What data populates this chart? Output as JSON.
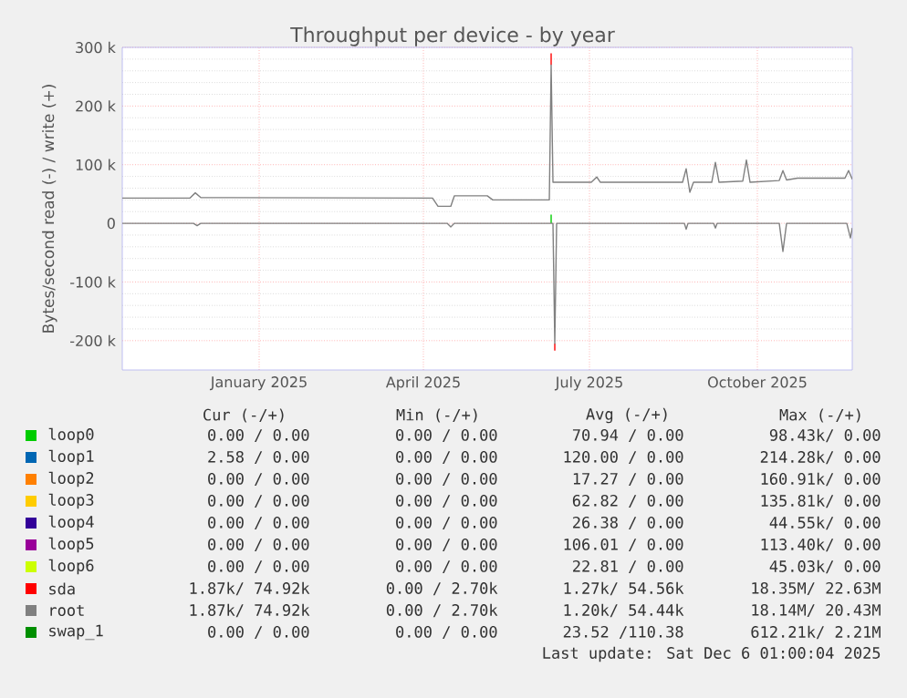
{
  "chart_data": {
    "type": "line",
    "title": "Throughput per device - by year",
    "ylabel": "Bytes/second read (-) / write (+)",
    "xlim": [
      "2024-11-01",
      "2025-12-06"
    ],
    "ylim": [
      -250000,
      300000
    ],
    "xticks": [
      {
        "value": "2025-01-15",
        "label": "January 2025"
      },
      {
        "value": "2025-04-15",
        "label": "April 2025"
      },
      {
        "value": "2025-07-15",
        "label": "July 2025"
      },
      {
        "value": "2025-10-15",
        "label": "October 2025"
      }
    ],
    "yticks": [
      {
        "value": -200000,
        "label": "-200 k"
      },
      {
        "value": -100000,
        "label": "-100 k"
      },
      {
        "value": 0,
        "label": "0"
      },
      {
        "value": 100000,
        "label": "100 k"
      },
      {
        "value": 200000,
        "label": "200 k"
      },
      {
        "value": 300000,
        "label": "300 k"
      }
    ],
    "grid": true,
    "legend": "bottom",
    "line_style": "solid",
    "marker": "none",
    "series": [
      {
        "name": "loop0",
        "color": "#00cc00",
        "x": [
          "2025-06-24",
          "2025-06-24"
        ],
        "values": [
          0,
          15000
        ]
      },
      {
        "name": "loop1",
        "color": "#0066b3"
      },
      {
        "name": "loop2",
        "color": "#ff8000"
      },
      {
        "name": "loop3",
        "color": "#ffcc00"
      },
      {
        "name": "loop4",
        "color": "#330099"
      },
      {
        "name": "loop5",
        "color": "#990099"
      },
      {
        "name": "loop6",
        "color": "#ccff00"
      },
      {
        "name": "sda",
        "color": "#ff0000",
        "x": [
          "2025-06-24",
          "2025-06-24"
        ],
        "values": [
          270000,
          290000
        ]
      },
      {
        "color": "#ff0000",
        "x": [
          "2025-06-26",
          "2025-06-26"
        ],
        "values": [
          -205000,
          -217000
        ]
      },
      {
        "name": "root",
        "color": "#808080",
        "x": [
          "2024-11-01",
          "2024-12-08",
          "2024-12-11",
          "2024-12-14",
          "2025-04-20",
          "2025-04-23",
          "2025-04-30",
          "2025-05-02",
          "2025-05-20",
          "2025-05-23",
          "2025-06-23",
          "2025-06-24",
          "2025-06-25",
          "2025-07-16",
          "2025-07-19",
          "2025-07-21",
          "2025-09-04",
          "2025-09-06",
          "2025-09-08",
          "2025-09-10",
          "2025-09-20",
          "2025-09-22",
          "2025-09-24",
          "2025-10-07",
          "2025-10-09",
          "2025-10-11",
          "2025-10-27",
          "2025-10-29",
          "2025-10-31",
          "2025-11-06",
          "2025-12-02",
          "2025-12-04",
          "2025-12-06"
        ],
        "values": [
          43000,
          43000,
          52000,
          44000,
          43000,
          29000,
          29000,
          47000,
          47000,
          40000,
          40000,
          270000,
          70000,
          70000,
          79000,
          70000,
          70000,
          93000,
          53000,
          70000,
          70000,
          104000,
          70000,
          72000,
          108000,
          70000,
          73000,
          90000,
          74000,
          77000,
          77000,
          90000,
          75000
        ]
      },
      {
        "color": "#808080",
        "x": [
          "2024-11-01",
          "2024-12-10",
          "2024-12-12",
          "2024-12-14",
          "2025-04-28",
          "2025-04-30",
          "2025-05-02",
          "2025-06-25",
          "2025-06-26",
          "2025-06-27",
          "2025-09-05",
          "2025-09-06",
          "2025-09-07",
          "2025-09-21",
          "2025-09-22",
          "2025-09-23",
          "2025-10-27",
          "2025-10-29",
          "2025-10-31",
          "2025-12-03",
          "2025-12-05",
          "2025-12-06"
        ],
        "values": [
          0,
          0,
          -4000,
          0,
          0,
          -6000,
          0,
          0,
          -205000,
          0,
          0,
          -10000,
          0,
          0,
          -8000,
          0,
          0,
          -48000,
          0,
          0,
          -25000,
          -8000
        ]
      },
      {
        "name": "swap_1",
        "color": "#008f00"
      }
    ],
    "annotations": [
      "Cur (-/+)",
      "Min (-/+)",
      "Avg (-/+)",
      "Max (-/+)",
      "0.00 /  0.00",
      "0.00 /  0.00",
      "70.94 /  0.00",
      "98.43k/  0.00",
      "2.58 /  0.00",
      "0.00 /  0.00",
      "120.00 /  0.00",
      "214.28k/  0.00",
      "0.00 /  0.00",
      "0.00 /  0.00",
      "17.27 /  0.00",
      "160.91k/  0.00",
      "0.00 /  0.00",
      "0.00 /  0.00",
      "62.82 /  0.00",
      "135.81k/  0.00",
      "0.00 /  0.00",
      "0.00 /  0.00",
      "26.38 /  0.00",
      "44.55k/  0.00",
      "0.00 /  0.00",
      "0.00 /  0.00",
      "106.01 /  0.00",
      "113.40k/  0.00",
      "0.00 /  0.00",
      "0.00 /  0.00",
      "22.81 /  0.00",
      "45.03k/  0.00",
      "1.87k/ 74.92k",
      "0.00 /  2.70k",
      "1.27k/ 54.56k",
      "18.35M/ 22.63M",
      "1.87k/ 74.92k",
      "0.00 /  2.70k",
      "1.20k/ 54.44k",
      "18.14M/ 20.43M",
      "0.00 /  0.00",
      "0.00 /  0.00",
      "23.52 /110.38",
      "612.21k/  2.21M",
      "Last update: Sat Dec  6 01:00:04 2025"
    ]
  }
}
